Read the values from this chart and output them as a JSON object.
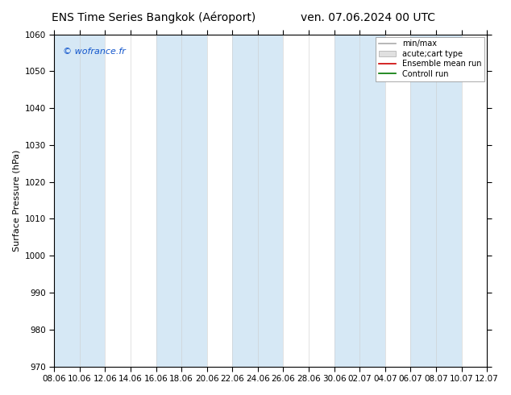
{
  "title_left": "ENS Time Series Bangkok (Aéroport)",
  "title_right": "ven. 07.06.2024 00 UTC",
  "ylabel": "Surface Pressure (hPa)",
  "ylim": [
    970,
    1060
  ],
  "yticks": [
    970,
    980,
    990,
    1000,
    1010,
    1020,
    1030,
    1040,
    1050,
    1060
  ],
  "xtick_labels": [
    "08.06",
    "10.06",
    "12.06",
    "14.06",
    "16.06",
    "18.06",
    "20.06",
    "22.06",
    "24.06",
    "26.06",
    "28.06",
    "30.06",
    "02.07",
    "04.07",
    "06.07",
    "08.07",
    "10.07",
    "12.07"
  ],
  "copyright": "© wofrance.fr",
  "background_color": "#ffffff",
  "plot_bg_color": "#ffffff",
  "band_color": "#d6e8f5",
  "band_indices": [
    0,
    4,
    7,
    11,
    14
  ],
  "legend_entries": [
    "min/max",
    "acute;cart type",
    "Ensemble mean run",
    "Controll run"
  ],
  "legend_line_colors": [
    "#aaaaaa",
    "#cccccc",
    "#cc0000",
    "#007700"
  ],
  "title_fontsize": 10,
  "label_fontsize": 8,
  "tick_fontsize": 7.5,
  "copyright_color": "#1155cc"
}
